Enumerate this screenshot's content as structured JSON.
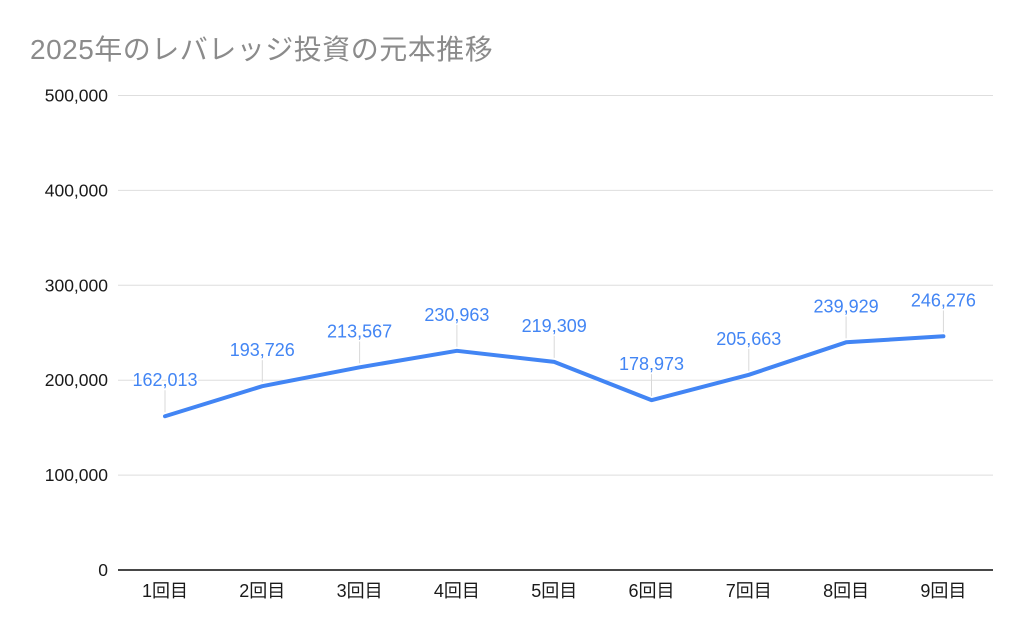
{
  "page": {
    "background": "#ffffff"
  },
  "chart_data": {
    "type": "line",
    "title": "2025年のレバレッジ投資の元本推移",
    "categories": [
      "1回目",
      "2回目",
      "3回目",
      "4回目",
      "5回目",
      "6回目",
      "7回目",
      "8回目",
      "9回目"
    ],
    "values": [
      162013,
      193726,
      213567,
      230963,
      219309,
      178973,
      205663,
      239929,
      246276
    ],
    "data_labels": [
      "162,013",
      "193,726",
      "213,567",
      "230,963",
      "219,309",
      "178,973",
      "205,663",
      "239,929",
      "246,276"
    ],
    "xlabel": "",
    "ylabel": "",
    "ylim": [
      0,
      500000
    ],
    "yticks": [
      0,
      100000,
      200000,
      300000,
      400000,
      500000
    ],
    "ytick_labels": [
      "0",
      "100,000",
      "200,000",
      "300,000",
      "400,000",
      "500,000"
    ],
    "grid": true,
    "legend": "none",
    "markers": "none",
    "colors": {
      "line": "#4285f4",
      "data_label": "#4285f4",
      "title": "#8b8b8b",
      "axis_text": "#1a1a1a",
      "gridline": "#dedede",
      "baseline": "#474747",
      "leader_line": "#d8d8d8",
      "background": "#ffffff"
    }
  }
}
